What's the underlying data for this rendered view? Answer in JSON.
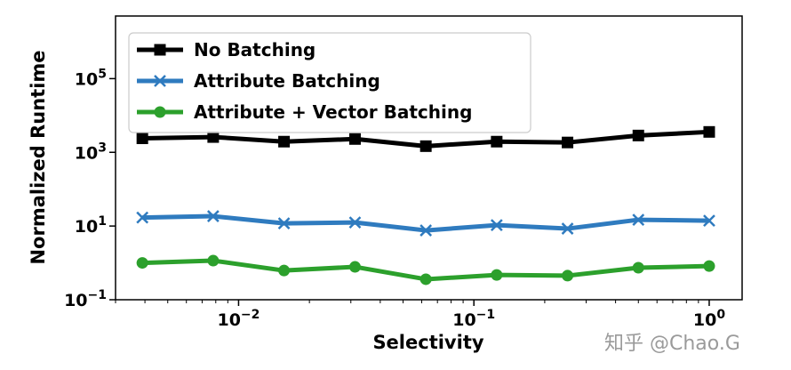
{
  "chart_data": {
    "type": "line",
    "title": "",
    "xlabel": "Selectivity",
    "ylabel": "Normalized Runtime",
    "xscale": "log",
    "yscale": "log",
    "xlim": [
      0.003,
      1.38
    ],
    "ylim": [
      0.1,
      5000000
    ],
    "x_ticks": [
      {
        "value": 0.01,
        "base": "10",
        "exp": "−2"
      },
      {
        "value": 0.1,
        "base": "10",
        "exp": "−1"
      },
      {
        "value": 1,
        "base": "10",
        "exp": "0"
      }
    ],
    "y_ticks": [
      {
        "value": 0.1,
        "base": "10",
        "exp": "−1"
      },
      {
        "value": 10,
        "base": "10",
        "exp": "1"
      },
      {
        "value": 1000,
        "base": "10",
        "exp": "3"
      },
      {
        "value": 100000,
        "base": "10",
        "exp": "5"
      }
    ],
    "grid": false,
    "legend": "top-left",
    "x": [
      0.0039,
      0.0078,
      0.0156,
      0.03125,
      0.0625,
      0.125,
      0.25,
      0.5,
      1.0
    ],
    "series": [
      {
        "name": "No Batching",
        "color": "#000000",
        "marker": "square",
        "values": [
          2400,
          2600,
          1950,
          2300,
          1470,
          1950,
          1850,
          2860,
          3580
        ]
      },
      {
        "name": "Attribute Batching",
        "color": "#2f7bbf",
        "marker": "x",
        "values": [
          17,
          18.5,
          11.8,
          12.5,
          7.6,
          10.6,
          8.5,
          14.8,
          14
        ]
      },
      {
        "name": "Attribute + Vector Batching",
        "color": "#2ca02c",
        "marker": "circle",
        "values": [
          1.0,
          1.15,
          0.62,
          0.78,
          0.36,
          0.47,
          0.45,
          0.74,
          0.82
        ]
      }
    ]
  },
  "watermark": "知乎 @Chao.G"
}
